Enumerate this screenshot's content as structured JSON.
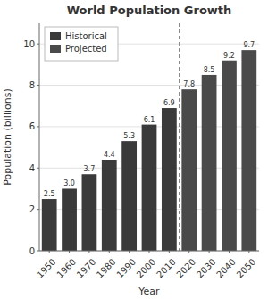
{
  "chart_data": {
    "type": "bar",
    "title": "World Population Growth",
    "categories": [
      "1950",
      "1960",
      "1970",
      "1980",
      "1990",
      "2000",
      "2010",
      "2020",
      "2030",
      "2040",
      "2050"
    ],
    "series": [
      {
        "name": "Historical",
        "color": "#3a3a3a",
        "values": [
          2.5,
          3.0,
          3.7,
          4.4,
          5.3,
          6.1,
          6.9,
          null,
          null,
          null,
          null
        ],
        "value_labels": [
          "2.5",
          "3.0",
          "3.7",
          "4.4",
          "5.3",
          "6.1",
          "6.9",
          null,
          null,
          null,
          null
        ]
      },
      {
        "name": "Projected",
        "color": "#4a4a4a",
        "values": [
          null,
          null,
          null,
          null,
          null,
          null,
          null,
          7.8,
          8.5,
          9.2,
          9.7
        ],
        "value_labels": [
          null,
          null,
          null,
          null,
          null,
          null,
          null,
          "7.8",
          "8.5",
          "9.2",
          "9.7"
        ]
      }
    ],
    "xlabel": "Year",
    "ylabel": "Population (billions)",
    "ylim": [
      0,
      11
    ],
    "yticks": [
      0,
      2,
      4,
      6,
      8,
      10
    ],
    "grid": true,
    "legend": "upper-left",
    "data_labels": true
  }
}
